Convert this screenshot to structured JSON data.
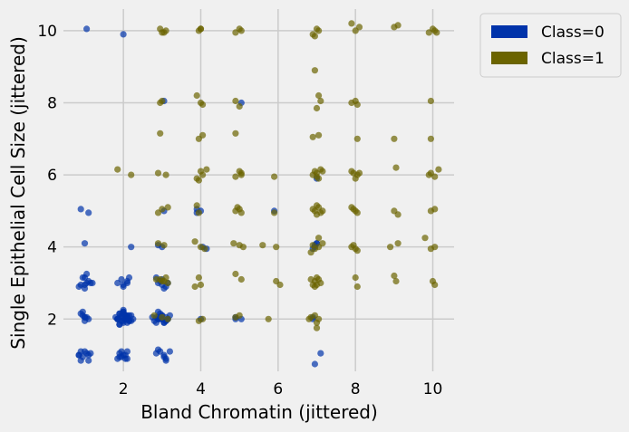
{
  "chart_data": {
    "type": "scatter",
    "title": "",
    "xlabel": "Bland Chromatin (jittered)",
    "ylabel": "Single Epithelial Cell Size (jittered)",
    "xlim": [
      0.45,
      10.55
    ],
    "ylim": [
      0.55,
      10.6
    ],
    "xticks": [
      2,
      4,
      6,
      8,
      10
    ],
    "yticks": [
      2,
      4,
      6,
      8,
      10
    ],
    "grid": true,
    "legend_position": "outside-top-right",
    "series": [
      {
        "name": "Class=0",
        "color": "#0033aa",
        "x": [
          1.05,
          2.0,
          2.2,
          3.0,
          0.9,
          1.1,
          1.0,
          1.2,
          1.0,
          0.85,
          1.05,
          1.0,
          1.15,
          0.95,
          1.1,
          1.0,
          0.9,
          1.05,
          0.95,
          2.05,
          1.85,
          2.15,
          2.0,
          1.95,
          2.1,
          1.9,
          2.2,
          2.05,
          1.9,
          2.0,
          2.15,
          1.95,
          1.85,
          2.1,
          2.0,
          2.25,
          1.9,
          2.05,
          2.0,
          1.8,
          2.1,
          2.0,
          1.9,
          2.15,
          2.05,
          1.95,
          2.0,
          2.1,
          1.85,
          2.2,
          2.0,
          2.9,
          3.1,
          2.8,
          3.0,
          3.15,
          2.95,
          3.05,
          2.85,
          3.1,
          2.9,
          3.0,
          3.2,
          3.05,
          2.75,
          2.95,
          3.1,
          3.0,
          2.9,
          3.15,
          2.85,
          0.9,
          0.95,
          1.05,
          0.85,
          1.1,
          1.95,
          2.05,
          2.1,
          1.9,
          2.95,
          3.05,
          3.1,
          4.0,
          2.1,
          2.0,
          1.95,
          1.05,
          0.95,
          0.9,
          1.1,
          1.0,
          1.85,
          2.0,
          2.1,
          2.15,
          2.95,
          3.05,
          2.9,
          3.15,
          2.85,
          3.1,
          3.0,
          4.05,
          4.15,
          4.9,
          6.9,
          6.95,
          7.1,
          6.95,
          6.9,
          3.0,
          2.9,
          2.9,
          3.05,
          3.9,
          4.0,
          5.05,
          7.0,
          5.9,
          0.85,
          1.1,
          0.9,
          1.15,
          1.0,
          1.9,
          2.05,
          1.85,
          2.1,
          2.0,
          1.95,
          2.9,
          3.05,
          3.1,
          2.85,
          3.2,
          5.05,
          7.0,
          6.95,
          1.0,
          1.0,
          3.05,
          3.9,
          4.9,
          6.9,
          7.0
        ],
        "y": [
          10.05,
          9.9,
          4.0,
          4.0,
          5.05,
          4.95,
          4.1,
          3.0,
          2.95,
          2.9,
          3.25,
          3.15,
          3.0,
          2.1,
          2.0,
          1.95,
          2.15,
          2.05,
          2.2,
          2.1,
          2.0,
          1.95,
          2.2,
          2.05,
          1.9,
          2.15,
          2.1,
          2.0,
          1.85,
          2.25,
          1.95,
          2.1,
          2.0,
          2.05,
          1.9,
          2.0,
          2.15,
          2.1,
          1.95,
          2.05,
          2.0,
          2.2,
          1.85,
          2.1,
          2.0,
          1.95,
          2.05,
          2.1,
          2.0,
          1.95,
          2.15,
          2.0,
          2.05,
          1.95,
          2.1,
          2.0,
          2.15,
          1.9,
          2.05,
          1.95,
          2.2,
          2.0,
          2.1,
          1.9,
          2.05,
          2.0,
          1.95,
          2.1,
          2.05,
          2.0,
          1.9,
          1.1,
          0.95,
          1.05,
          1.0,
          0.85,
          1.1,
          1.0,
          0.9,
          0.95,
          1.1,
          1.0,
          0.9,
          2.0,
          3.0,
          2.9,
          3.1,
          3.0,
          3.15,
          2.95,
          3.05,
          2.85,
          3.0,
          2.95,
          3.05,
          3.15,
          3.05,
          2.85,
          3.0,
          3.0,
          3.15,
          2.9,
          3.1,
          4.0,
          3.95,
          2.0,
          2.0,
          4.05,
          1.05,
          0.75,
          2.05,
          2.95,
          2.0,
          4.05,
          5.0,
          4.95,
          5.0,
          8.0,
          5.9,
          5.0,
          1.0,
          1.0,
          0.85,
          1.05,
          1.1,
          1.05,
          0.9,
          0.9,
          1.1,
          1.0,
          0.95,
          1.15,
          0.95,
          0.85,
          1.05,
          1.1,
          2.0,
          4.1,
          4.0,
          2.05,
          2.05,
          8.05,
          5.05,
          2.05,
          3.95,
          4.1
        ]
      },
      {
        "name": "Class=1",
        "color": "#6b6400",
        "x": [
          2.95,
          3.05,
          3.1,
          3.0,
          4.0,
          3.95,
          4.0,
          5.0,
          4.9,
          5.05,
          6.9,
          7.0,
          7.05,
          6.95,
          7.9,
          8.0,
          8.1,
          9.0,
          9.1,
          9.9,
          10.0,
          10.05,
          10.1,
          2.95,
          3.0,
          3.9,
          4.05,
          4.0,
          4.9,
          5.0,
          6.95,
          7.05,
          7.1,
          7.0,
          8.0,
          8.05,
          7.9,
          9.95,
          2.95,
          4.05,
          3.95,
          4.9,
          6.9,
          7.05,
          8.05,
          9.0,
          9.95,
          1.85,
          2.2,
          2.9,
          3.1,
          4.0,
          3.95,
          4.15,
          4.05,
          3.9,
          5.05,
          4.9,
          5.0,
          5.05,
          5.9,
          6.95,
          7.0,
          7.1,
          7.05,
          6.9,
          7.15,
          7.0,
          7.95,
          8.05,
          8.0,
          8.1,
          7.9,
          9.05,
          9.95,
          10.05,
          10.15,
          9.9,
          3.0,
          2.9,
          3.15,
          3.9,
          3.95,
          4.95,
          5.05,
          4.9,
          5.0,
          5.9,
          6.95,
          7.05,
          7.1,
          6.9,
          7.0,
          7.15,
          7.0,
          7.95,
          8.05,
          8.0,
          7.9,
          9.0,
          9.1,
          9.95,
          10.05,
          2.9,
          3.05,
          3.85,
          4.0,
          4.1,
          4.85,
          5.0,
          5.1,
          5.6,
          5.95,
          6.85,
          7.05,
          7.15,
          6.95,
          7.05,
          6.9,
          7.9,
          8.05,
          8.0,
          7.95,
          8.9,
          9.1,
          9.8,
          9.95,
          10.05,
          2.85,
          3.0,
          3.1,
          3.15,
          2.95,
          3.05,
          3.95,
          4.0,
          3.85,
          4.9,
          5.05,
          5.95,
          6.05,
          6.9,
          7.05,
          6.95,
          7.1,
          7.0,
          6.95,
          6.85,
          7.0,
          8.05,
          8.0,
          9.05,
          9.0,
          10.0,
          10.05,
          3.0,
          3.15,
          2.8,
          4.05,
          3.95,
          4.9,
          5.0,
          5.75,
          6.85,
          7.0,
          6.95,
          7.05,
          6.8,
          7.0
        ],
        "y": [
          10.05,
          9.95,
          10.0,
          9.95,
          10.05,
          10.0,
          10.05,
          10.05,
          9.95,
          10.0,
          9.9,
          10.05,
          10.0,
          9.85,
          10.2,
          10.0,
          10.1,
          10.1,
          10.15,
          9.95,
          10.05,
          10.0,
          9.95,
          8.0,
          8.05,
          8.2,
          7.95,
          8.0,
          8.05,
          7.9,
          8.9,
          8.2,
          8.05,
          7.85,
          8.05,
          7.95,
          8.0,
          8.05,
          7.15,
          7.1,
          7.0,
          7.15,
          7.05,
          7.1,
          7.0,
          7.0,
          7.0,
          6.15,
          6.0,
          6.05,
          6.0,
          6.1,
          5.85,
          6.15,
          6.0,
          5.9,
          6.05,
          5.95,
          6.1,
          6.0,
          5.95,
          6.1,
          6.05,
          6.15,
          5.9,
          6.0,
          6.1,
          5.95,
          6.05,
          6.0,
          5.9,
          6.05,
          6.1,
          6.2,
          6.05,
          5.95,
          6.15,
          6.0,
          5.05,
          4.95,
          5.1,
          5.15,
          4.95,
          5.1,
          4.95,
          5.0,
          5.05,
          4.95,
          5.0,
          5.1,
          4.95,
          5.05,
          4.9,
          5.0,
          5.15,
          5.05,
          4.95,
          5.0,
          5.1,
          5.0,
          4.9,
          5.0,
          5.05,
          4.1,
          4.05,
          4.15,
          4.0,
          3.95,
          4.1,
          4.05,
          4.0,
          4.05,
          4.0,
          3.85,
          4.0,
          4.1,
          3.95,
          4.25,
          4.05,
          4.0,
          3.9,
          3.95,
          4.05,
          4.0,
          4.1,
          4.25,
          3.95,
          4.0,
          3.1,
          3.05,
          3.15,
          3.0,
          3.1,
          3.05,
          3.15,
          2.95,
          2.9,
          3.25,
          3.1,
          3.05,
          2.95,
          2.95,
          3.1,
          3.05,
          3.0,
          3.15,
          2.9,
          3.1,
          2.95,
          2.9,
          3.15,
          3.05,
          3.2,
          3.05,
          2.95,
          2.05,
          2.0,
          2.1,
          2.0,
          1.95,
          2.05,
          2.1,
          2.0,
          2.05,
          1.9,
          2.1,
          2.0,
          2.0,
          1.75
        ]
      }
    ]
  }
}
